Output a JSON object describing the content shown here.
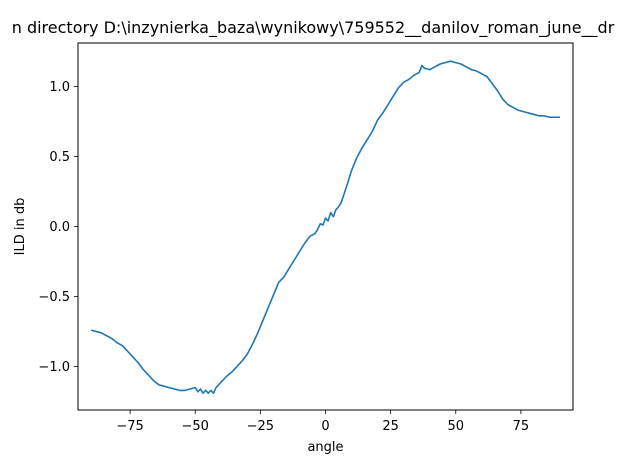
{
  "chart_data": {
    "type": "line",
    "title": "n directory D:\\inzynierka_baza\\wynikowy\\759552__danilov_roman_june__dr",
    "xlabel": "angle",
    "ylabel": "ILD in db",
    "xlim": [
      -95,
      95
    ],
    "ylim": [
      -1.31,
      1.31
    ],
    "xticks": [
      -75,
      -50,
      -25,
      0,
      25,
      50,
      75
    ],
    "yticks": [
      -1.0,
      -0.5,
      0.0,
      0.5,
      1.0
    ],
    "xtick_labels": [
      "−75",
      "−50",
      "−25",
      "0",
      "25",
      "50",
      "75"
    ],
    "ytick_labels": [
      "−1.0",
      "−0.5",
      "0.0",
      "0.5",
      "1.0"
    ],
    "grid": false,
    "series": [
      {
        "color": "#1f77b4",
        "x": [
          -90,
          -88,
          -86,
          -84,
          -82,
          -80,
          -78,
          -76,
          -74,
          -72,
          -70,
          -68,
          -66,
          -64,
          -62,
          -60,
          -58,
          -56,
          -54,
          -52,
          -50,
          -49,
          -48,
          -47,
          -46,
          -45,
          -44,
          -43,
          -42,
          -40,
          -38,
          -36,
          -34,
          -32,
          -30,
          -28,
          -26,
          -24,
          -22,
          -20,
          -18,
          -16,
          -14,
          -12,
          -10,
          -8,
          -6,
          -4,
          -3,
          -2,
          -1,
          0,
          1,
          2,
          3,
          4,
          5,
          6,
          8,
          10,
          12,
          14,
          16,
          18,
          20,
          22,
          24,
          26,
          28,
          30,
          32,
          34,
          36,
          37,
          38,
          40,
          42,
          44,
          46,
          48,
          50,
          52,
          54,
          56,
          58,
          60,
          62,
          64,
          66,
          68,
          70,
          72,
          74,
          76,
          78,
          80,
          82,
          84,
          86,
          88,
          90
        ],
        "y": [
          -0.74,
          -0.75,
          -0.76,
          -0.78,
          -0.8,
          -0.83,
          -0.85,
          -0.89,
          -0.93,
          -0.97,
          -1.02,
          -1.06,
          -1.1,
          -1.13,
          -1.14,
          -1.15,
          -1.16,
          -1.17,
          -1.17,
          -1.16,
          -1.15,
          -1.18,
          -1.16,
          -1.19,
          -1.17,
          -1.19,
          -1.17,
          -1.19,
          -1.15,
          -1.11,
          -1.07,
          -1.04,
          -1.0,
          -0.96,
          -0.91,
          -0.84,
          -0.76,
          -0.67,
          -0.58,
          -0.49,
          -0.4,
          -0.36,
          -0.3,
          -0.24,
          -0.18,
          -0.12,
          -0.07,
          -0.05,
          -0.02,
          0.02,
          0.01,
          0.06,
          0.04,
          0.1,
          0.07,
          0.12,
          0.14,
          0.17,
          0.28,
          0.4,
          0.49,
          0.56,
          0.62,
          0.68,
          0.76,
          0.81,
          0.87,
          0.93,
          0.99,
          1.03,
          1.05,
          1.08,
          1.1,
          1.15,
          1.13,
          1.12,
          1.14,
          1.16,
          1.17,
          1.18,
          1.17,
          1.16,
          1.14,
          1.12,
          1.11,
          1.09,
          1.07,
          1.02,
          0.97,
          0.91,
          0.87,
          0.85,
          0.83,
          0.82,
          0.81,
          0.8,
          0.79,
          0.79,
          0.78,
          0.78,
          0.78
        ]
      }
    ]
  }
}
